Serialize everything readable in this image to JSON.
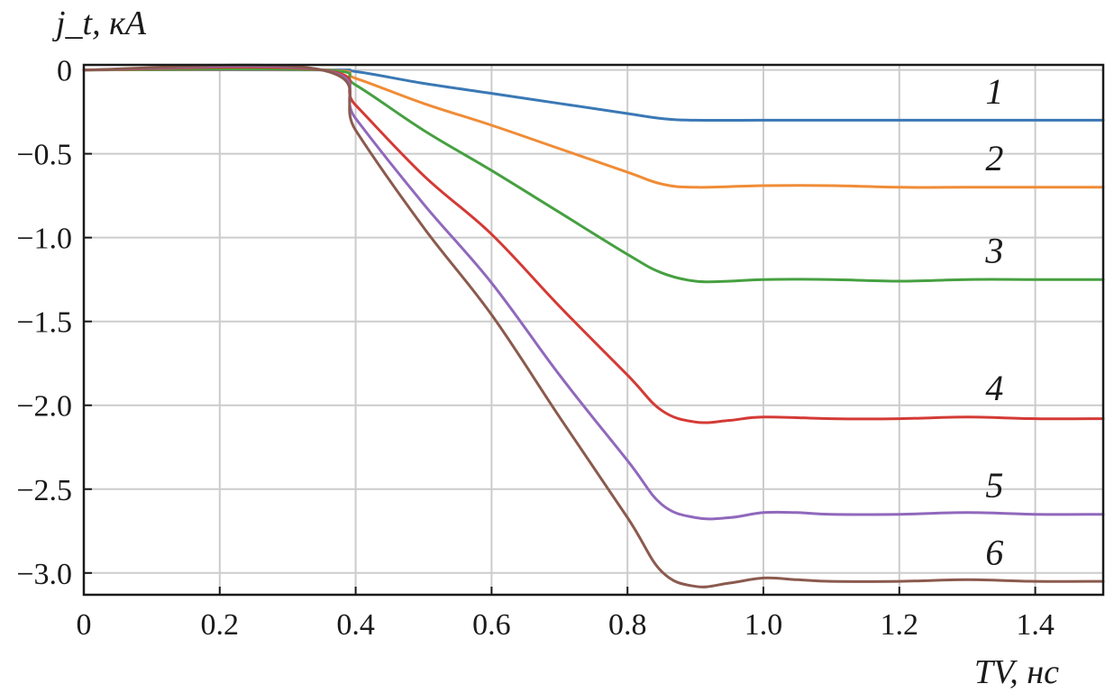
{
  "chart_data": {
    "type": "line",
    "xlabel": "TV, нс",
    "ylabel": "j_t, кА",
    "xlim": [
      0,
      1.5
    ],
    "ylim": [
      -3.13,
      0.03
    ],
    "x_ticks": [
      0,
      0.2,
      0.4,
      0.6,
      0.8,
      1.0,
      1.2,
      1.4
    ],
    "x_tick_labels": [
      "0",
      "0.2",
      "0.4",
      "0.6",
      "0.8",
      "1.0",
      "1.2",
      "1.4"
    ],
    "y_ticks": [
      0,
      -0.5,
      -1.0,
      -1.5,
      -2.0,
      -2.5,
      -3.0
    ],
    "y_tick_labels": [
      "0",
      "−0.5",
      "−1.0",
      "−1.5",
      "−2.0",
      "−2.5",
      "−3.0"
    ],
    "grid": true,
    "series": [
      {
        "name": "1",
        "color": "#3a78b5",
        "x": [
          0,
          0.35,
          0.4,
          0.5,
          0.6,
          0.7,
          0.8,
          0.85,
          0.9,
          1.0,
          1.1,
          1.2,
          1.3,
          1.4,
          1.5
        ],
        "y": [
          0,
          0,
          -0.01,
          -0.08,
          -0.14,
          -0.2,
          -0.26,
          -0.29,
          -0.3,
          -0.3,
          -0.3,
          -0.3,
          -0.3,
          -0.3,
          -0.3
        ]
      },
      {
        "name": "2",
        "color": "#f08c36",
        "x": [
          0,
          0.35,
          0.4,
          0.5,
          0.6,
          0.7,
          0.8,
          0.85,
          0.9,
          1.0,
          1.1,
          1.2,
          1.3,
          1.4,
          1.5
        ],
        "y": [
          0,
          0,
          -0.05,
          -0.2,
          -0.33,
          -0.47,
          -0.61,
          -0.68,
          -0.7,
          -0.69,
          -0.69,
          -0.7,
          -0.7,
          -0.7,
          -0.7
        ]
      },
      {
        "name": "3",
        "color": "#46a041",
        "x": [
          0,
          0.35,
          0.4,
          0.5,
          0.6,
          0.7,
          0.8,
          0.85,
          0.9,
          0.95,
          1.0,
          1.1,
          1.2,
          1.3,
          1.4,
          1.5
        ],
        "y": [
          0,
          0,
          -0.09,
          -0.36,
          -0.6,
          -0.85,
          -1.1,
          -1.21,
          -1.26,
          -1.26,
          -1.25,
          -1.25,
          -1.26,
          -1.25,
          -1.25,
          -1.25
        ]
      },
      {
        "name": "4",
        "color": "#d43a35",
        "x": [
          0,
          0.35,
          0.4,
          0.5,
          0.6,
          0.7,
          0.8,
          0.85,
          0.9,
          0.95,
          1.0,
          1.1,
          1.2,
          1.3,
          1.4,
          1.5
        ],
        "y": [
          0,
          0,
          -0.21,
          -0.63,
          -0.98,
          -1.41,
          -1.82,
          -2.03,
          -2.1,
          -2.09,
          -2.07,
          -2.08,
          -2.08,
          -2.07,
          -2.08,
          -2.08
        ]
      },
      {
        "name": "5",
        "color": "#9068bc",
        "x": [
          0,
          0.35,
          0.4,
          0.5,
          0.6,
          0.7,
          0.8,
          0.85,
          0.9,
          0.95,
          1.0,
          1.05,
          1.1,
          1.2,
          1.3,
          1.4,
          1.5
        ],
        "y": [
          0,
          0,
          -0.29,
          -0.8,
          -1.27,
          -1.82,
          -2.33,
          -2.59,
          -2.67,
          -2.67,
          -2.64,
          -2.64,
          -2.65,
          -2.65,
          -2.64,
          -2.65,
          -2.65
        ]
      },
      {
        "name": "6",
        "color": "#8b5a4e",
        "x": [
          0,
          0.35,
          0.4,
          0.5,
          0.6,
          0.7,
          0.8,
          0.85,
          0.9,
          0.95,
          1.0,
          1.05,
          1.1,
          1.2,
          1.3,
          1.4,
          1.5
        ],
        "y": [
          0,
          0,
          -0.36,
          -0.94,
          -1.46,
          -2.07,
          -2.67,
          -2.99,
          -3.08,
          -3.06,
          -3.03,
          -3.04,
          -3.05,
          -3.05,
          -3.04,
          -3.05,
          -3.05
        ]
      }
    ],
    "series_label_positions": [
      {
        "name": "1",
        "x": 1.34,
        "y": -0.2
      },
      {
        "name": "2",
        "x": 1.34,
        "y": -0.6
      },
      {
        "name": "3",
        "x": 1.34,
        "y": -1.15
      },
      {
        "name": "4",
        "x": 1.34,
        "y": -1.97
      },
      {
        "name": "5",
        "x": 1.34,
        "y": -2.55
      },
      {
        "name": "6",
        "x": 1.34,
        "y": -2.95
      }
    ]
  }
}
